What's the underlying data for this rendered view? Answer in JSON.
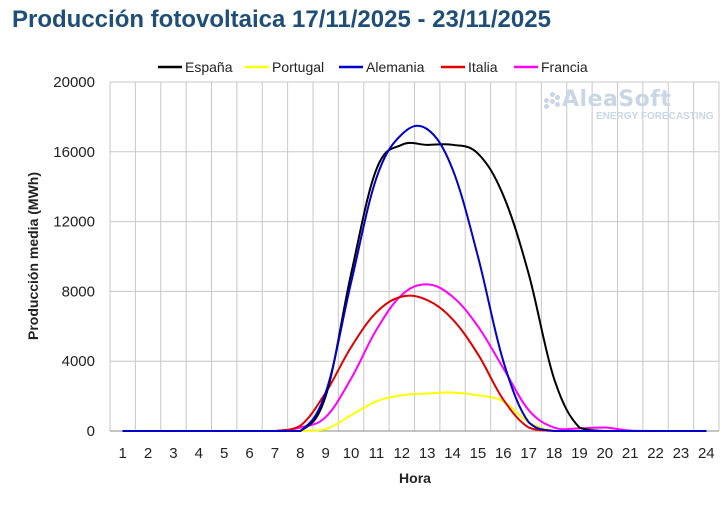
{
  "title": "Producción fotovoltaica 17/11/2025 - 23/11/2025",
  "logo": {
    "main": "AleaSoft",
    "sub": "ENERGY FORECASTING"
  },
  "chart_data": {
    "type": "line",
    "title": "Producción fotovoltaica 17/11/2025 - 23/11/2025",
    "xlabel": "Hora",
    "ylabel": "Producción media (MWh)",
    "x": [
      1,
      2,
      3,
      4,
      5,
      6,
      7,
      8,
      9,
      10,
      11,
      12,
      13,
      14,
      15,
      16,
      17,
      18,
      19,
      20,
      21,
      22,
      23,
      24
    ],
    "ylim": [
      0,
      20000
    ],
    "yticks": [
      "0",
      "4000",
      "8000",
      "12000",
      "16000",
      "20000"
    ],
    "xticks": [
      "1",
      "2",
      "3",
      "4",
      "5",
      "6",
      "7",
      "8",
      "9",
      "10",
      "11",
      "12",
      "13",
      "14",
      "15",
      "16",
      "17",
      "18",
      "19",
      "20",
      "21",
      "22",
      "23",
      "24"
    ],
    "grid": true,
    "legend_position": "top",
    "series": [
      {
        "name": "España",
        "color": "#000000",
        "values": [
          0,
          0,
          0,
          0,
          0,
          0,
          0,
          0,
          2000,
          9000,
          15000,
          16400,
          16400,
          16400,
          15900,
          13500,
          9000,
          3000,
          200,
          0,
          0,
          0,
          0,
          0
        ]
      },
      {
        "name": "Portugal",
        "color": "#ffff00",
        "values": [
          0,
          0,
          0,
          0,
          0,
          0,
          0,
          0,
          100,
          900,
          1700,
          2050,
          2150,
          2200,
          2050,
          1700,
          500,
          0,
          0,
          0,
          0,
          0,
          0,
          0
        ]
      },
      {
        "name": "Alemania",
        "color": "#0000cc",
        "values": [
          0,
          0,
          0,
          0,
          0,
          0,
          0,
          0,
          2200,
          8500,
          14500,
          17000,
          17300,
          15000,
          10000,
          4000,
          500,
          0,
          0,
          0,
          0,
          0,
          0,
          0
        ]
      },
      {
        "name": "Italia",
        "color": "#e00000",
        "values": [
          0,
          0,
          0,
          0,
          0,
          0,
          0,
          300,
          2200,
          4800,
          6800,
          7700,
          7500,
          6400,
          4400,
          1800,
          200,
          0,
          0,
          0,
          0,
          0,
          0,
          0
        ]
      },
      {
        "name": "Francia",
        "color": "#ff00ff",
        "values": [
          0,
          0,
          0,
          0,
          0,
          0,
          0,
          200,
          800,
          3000,
          5800,
          7800,
          8400,
          7700,
          6000,
          3600,
          1200,
          200,
          150,
          200,
          20,
          0,
          0,
          0
        ]
      }
    ]
  }
}
